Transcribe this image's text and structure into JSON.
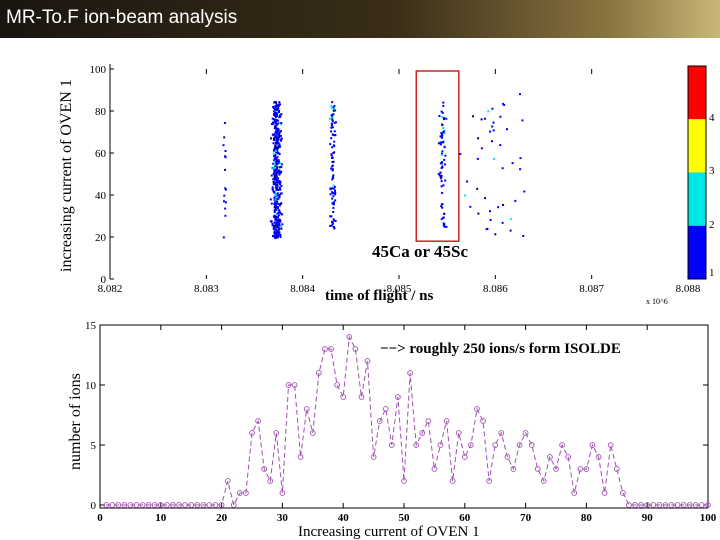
{
  "title": "MR-To.F ion-beam analysis",
  "chart_data": [
    {
      "type": "scatter",
      "ylabel": "increasing current of OVEN 1",
      "xlabel": "time of flight / ns",
      "xlim": [
        8.082,
        8.088
      ],
      "ylim": [
        0,
        100
      ],
      "x_ticks": [
        "8.082",
        "8.083",
        "8.084",
        "8.085",
        "8.086",
        "8.087",
        "8.088"
      ],
      "y_ticks": [
        "0",
        "20",
        "40",
        "60",
        "80",
        "100"
      ],
      "x_exponent": "x 10^6",
      "annotation": "45Ca or 45Sc",
      "highlight_box": {
        "x_from": 8.0852,
        "x_to": 8.0856,
        "y_from": 18,
        "y_to": 100
      },
      "colorbar": {
        "ticks": [
          "1",
          "2",
          "3",
          "4"
        ],
        "colors": [
          "#0000ff",
          "#00e5e5",
          "#ffff00",
          "#ff0000"
        ]
      },
      "clusters": [
        {
          "name": "8.0832 peak",
          "x_center": 8.08318,
          "x_spread": 3e-05,
          "y_range": [
            20,
            75
          ],
          "density": 15
        },
        {
          "name": "8.0837 peak",
          "x_center": 8.08372,
          "x_spread": 7e-05,
          "y_range": [
            20,
            85
          ],
          "density": 420
        },
        {
          "name": "8.0843 peak",
          "x_center": 8.0843,
          "x_spread": 5e-05,
          "y_range": [
            20,
            85
          ],
          "density": 90
        },
        {
          "name": "45Ca or 45Sc",
          "x_center": 8.08544,
          "x_spread": 5e-05,
          "y_range": [
            25,
            85
          ],
          "density": 70
        },
        {
          "name": "sparse",
          "x_center": 8.086,
          "x_spread": 0.0006,
          "y_range": [
            20,
            90
          ],
          "density": 45
        }
      ]
    },
    {
      "type": "line",
      "ylabel": "number of ions",
      "xlabel": "Increasing current of OVEN 1",
      "xlim": [
        0,
        100
      ],
      "ylim": [
        0,
        15
      ],
      "x_ticks": [
        "0",
        "10",
        "20",
        "30",
        "40",
        "50",
        "60",
        "70",
        "80",
        "90",
        "100"
      ],
      "y_ticks": [
        "0",
        "5",
        "10",
        "15"
      ],
      "annotation": "−−> roughly 250 ions/s form ISOLDE",
      "series_color": "#a050b0",
      "x": [
        1,
        2,
        3,
        4,
        5,
        6,
        7,
        8,
        9,
        10,
        11,
        12,
        13,
        14,
        15,
        16,
        17,
        18,
        19,
        20,
        21,
        22,
        23,
        24,
        25,
        26,
        27,
        28,
        29,
        30,
        31,
        32,
        33,
        34,
        35,
        36,
        37,
        38,
        39,
        40,
        41,
        42,
        43,
        44,
        45,
        46,
        47,
        48,
        49,
        50,
        51,
        52,
        53,
        54,
        55,
        56,
        57,
        58,
        59,
        60,
        61,
        62,
        63,
        64,
        65,
        66,
        67,
        68,
        69,
        70,
        71,
        72,
        73,
        74,
        75,
        76,
        77,
        78,
        79,
        80,
        81,
        82,
        83,
        84,
        85,
        86,
        87,
        88,
        89,
        90,
        91,
        92,
        93,
        94,
        95,
        96,
        97,
        98,
        99,
        100
      ],
      "values": [
        0,
        0,
        0,
        0,
        0,
        0,
        0,
        0,
        0,
        0,
        0,
        0,
        0,
        0,
        0,
        0,
        0,
        0,
        0,
        0,
        2,
        0,
        1,
        1,
        6,
        7,
        3,
        2,
        6,
        1,
        10,
        10,
        4,
        8,
        6,
        11,
        13,
        13,
        10,
        9,
        14,
        13,
        9,
        12,
        4,
        7,
        8,
        5,
        9,
        2,
        11,
        5,
        6,
        7,
        3,
        5,
        7,
        2,
        6,
        4,
        5,
        8,
        7,
        2,
        5,
        6,
        4,
        3,
        5,
        6,
        5,
        3,
        2,
        4,
        3,
        5,
        4,
        1,
        3,
        3,
        5,
        4,
        1,
        5,
        3,
        1,
        0,
        0,
        0,
        0,
        0,
        0,
        0,
        0,
        0,
        0,
        0,
        0,
        0,
        0
      ]
    }
  ]
}
